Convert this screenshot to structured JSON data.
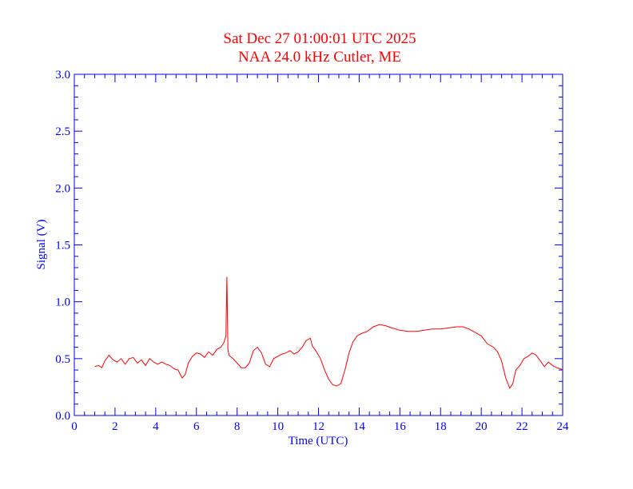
{
  "chart_data": {
    "type": "line",
    "title": "Sat Dec 27 01:00:01 UTC 2025",
    "subtitle": "NAA 24.0 kHz Cutler, ME",
    "xlabel": "Time (UTC)",
    "ylabel": "Signal (V)",
    "xlim": [
      0,
      24
    ],
    "ylim": [
      0,
      3.0
    ],
    "x_ticks": [
      0,
      2,
      4,
      6,
      8,
      10,
      12,
      14,
      16,
      18,
      20,
      22,
      24
    ],
    "x_tick_labels": [
      "0",
      "2",
      "4",
      "6",
      "8",
      "10",
      "12",
      "14",
      "16",
      "18",
      "20",
      "22",
      "24"
    ],
    "y_ticks": [
      0,
      0.5,
      1.0,
      1.5,
      2.0,
      2.5,
      3.0
    ],
    "y_tick_labels": [
      "0.0",
      "0.5",
      "1.0",
      "1.5",
      "2.0",
      "2.5",
      "3.0"
    ],
    "grid": false,
    "colors": {
      "title": "#ff0000",
      "axes": "#0000ff",
      "line": "#ff0000"
    },
    "series": [
      {
        "x": [
          1.0,
          1.2,
          1.35,
          1.5,
          1.7,
          1.9,
          2.1,
          2.3,
          2.5,
          2.7,
          2.9,
          3.1,
          3.3,
          3.5,
          3.7,
          3.9,
          4.1,
          4.3,
          4.5,
          4.7,
          4.9,
          5.1,
          5.3,
          5.45,
          5.6,
          5.8,
          6.0,
          6.2,
          6.4,
          6.6,
          6.8,
          7.0,
          7.2,
          7.35,
          7.45,
          7.5,
          7.55,
          7.6,
          7.8,
          8.0,
          8.2,
          8.4,
          8.6,
          8.8,
          9.0,
          9.2,
          9.4,
          9.6,
          9.8,
          10.0,
          10.2,
          10.4,
          10.6,
          10.8,
          11.0,
          11.2,
          11.4,
          11.6,
          11.7,
          11.9,
          12.1,
          12.3,
          12.5,
          12.7,
          12.9,
          13.1,
          13.3,
          13.5,
          13.7,
          13.9,
          14.1,
          14.4,
          14.7,
          15.0,
          15.3,
          15.6,
          16.0,
          16.4,
          16.8,
          17.2,
          17.6,
          18.0,
          18.4,
          18.8,
          19.1,
          19.4,
          19.7,
          20.0,
          20.3,
          20.6,
          20.8,
          21.0,
          21.2,
          21.4,
          21.55,
          21.7,
          21.9,
          22.1,
          22.3,
          22.5,
          22.7,
          22.9,
          23.1,
          23.3,
          23.5,
          23.7,
          23.9,
          24.0
        ],
        "y": [
          0.43,
          0.44,
          0.42,
          0.48,
          0.53,
          0.49,
          0.47,
          0.5,
          0.45,
          0.5,
          0.51,
          0.46,
          0.49,
          0.44,
          0.5,
          0.47,
          0.45,
          0.47,
          0.45,
          0.44,
          0.41,
          0.4,
          0.33,
          0.36,
          0.46,
          0.52,
          0.55,
          0.54,
          0.51,
          0.56,
          0.53,
          0.58,
          0.6,
          0.64,
          0.7,
          1.22,
          0.58,
          0.53,
          0.5,
          0.46,
          0.42,
          0.42,
          0.46,
          0.57,
          0.6,
          0.55,
          0.45,
          0.43,
          0.5,
          0.52,
          0.54,
          0.55,
          0.57,
          0.54,
          0.56,
          0.6,
          0.66,
          0.68,
          0.61,
          0.56,
          0.5,
          0.4,
          0.32,
          0.27,
          0.26,
          0.28,
          0.4,
          0.55,
          0.65,
          0.7,
          0.72,
          0.74,
          0.78,
          0.8,
          0.79,
          0.77,
          0.75,
          0.74,
          0.74,
          0.75,
          0.76,
          0.76,
          0.77,
          0.78,
          0.78,
          0.76,
          0.73,
          0.7,
          0.63,
          0.6,
          0.56,
          0.48,
          0.33,
          0.24,
          0.28,
          0.4,
          0.44,
          0.5,
          0.52,
          0.55,
          0.53,
          0.48,
          0.43,
          0.47,
          0.44,
          0.42,
          0.41,
          0.4
        ]
      }
    ]
  }
}
